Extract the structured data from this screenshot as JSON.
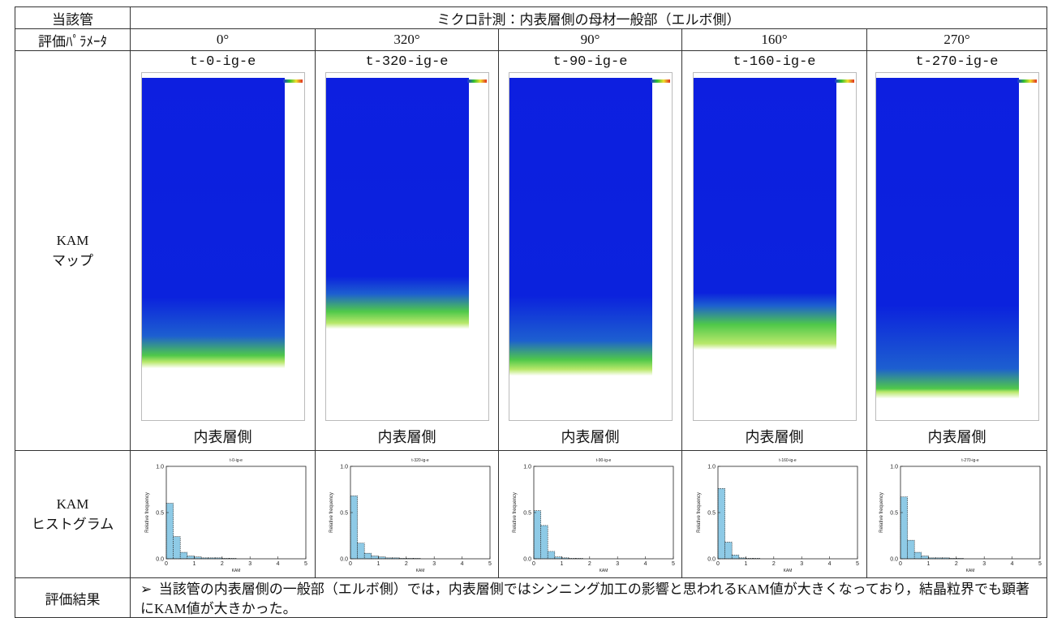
{
  "header": {
    "label": "当該管",
    "title": "ミクロ計測：内表層側の母材一般部（エルボ側）"
  },
  "params": {
    "label": "評価ﾊﾟﾗﾒｰﾀ",
    "angles": [
      "0°",
      "320°",
      "90°",
      "160°",
      "270°"
    ]
  },
  "kam_map": {
    "label": [
      "KAM",
      "マップ"
    ],
    "titles": [
      "t-0-ig-e",
      "t-320-ig-e",
      "t-90-ig-e",
      "t-160-ig-e",
      "t-270-ig-e"
    ],
    "captions": [
      "内表層側",
      "内表層側",
      "内表層側",
      "内表層側",
      "内表層側"
    ]
  },
  "histogram": {
    "label": [
      "KAM",
      "ヒストグラム"
    ],
    "charts": [
      {
        "type": "bar",
        "title": "t-0-ig-e",
        "xlabel": "KAM",
        "ylabel": "Relative frequency",
        "color": "#8ecae6",
        "bins": [
          0,
          0.25,
          0.5,
          0.75,
          1,
          1.25,
          1.5,
          1.75,
          2,
          2.25,
          2.5
        ],
        "values": [
          0.6,
          0.24,
          0.07,
          0.03,
          0.02,
          0.01,
          0.01,
          0.01,
          0.005,
          0.005
        ],
        "xlim": [
          0,
          5
        ],
        "ylim": [
          0,
          1
        ],
        "xticks": [
          0,
          1,
          2,
          3,
          4,
          5
        ],
        "yticks": [
          {
            "value": 0,
            "label": "0.0"
          },
          {
            "value": 0.5,
            "label": "0.5"
          },
          {
            "value": 1,
            "label": "1.0"
          }
        ]
      },
      {
        "type": "bar",
        "title": "t-320-ig-e",
        "xlabel": "KAM",
        "ylabel": "Relative frequency",
        "color": "#8ecae6",
        "bins": [
          0,
          0.25,
          0.5,
          0.75,
          1,
          1.25,
          1.5,
          1.75,
          2,
          2.25,
          2.5
        ],
        "values": [
          0.68,
          0.17,
          0.06,
          0.03,
          0.02,
          0.01,
          0.01,
          0.005,
          0.005,
          0.005
        ],
        "xlim": [
          0,
          5
        ],
        "ylim": [
          0,
          1
        ],
        "xticks": [
          0,
          1,
          2,
          3,
          4,
          5
        ],
        "yticks": [
          {
            "value": 0,
            "label": "0.0"
          },
          {
            "value": 0.5,
            "label": "0.5"
          },
          {
            "value": 1,
            "label": "1.0"
          }
        ]
      },
      {
        "type": "bar",
        "title": "t-90-ig-e",
        "xlabel": "KAM",
        "ylabel": "Relative frequency",
        "color": "#8ecae6",
        "bins": [
          0,
          0.25,
          0.5,
          0.75,
          1,
          1.25,
          1.5,
          1.75,
          2,
          2.25,
          2.5
        ],
        "values": [
          0.52,
          0.36,
          0.08,
          0.02,
          0.01,
          0.005,
          0.005,
          0,
          0,
          0
        ],
        "xlim": [
          0,
          5
        ],
        "ylim": [
          0,
          1
        ],
        "xticks": [
          0,
          1,
          2,
          3,
          4,
          5
        ],
        "yticks": [
          {
            "value": 0,
            "label": "0.0"
          },
          {
            "value": 0.5,
            "label": "0.5"
          },
          {
            "value": 1,
            "label": "1.0"
          }
        ]
      },
      {
        "type": "bar",
        "title": "t-160-ig-e",
        "xlabel": "KAM",
        "ylabel": "Relative frequency",
        "color": "#8ecae6",
        "bins": [
          0,
          0.25,
          0.5,
          0.75,
          1,
          1.25,
          1.5,
          1.75,
          2,
          2.25,
          2.5
        ],
        "values": [
          0.76,
          0.18,
          0.04,
          0.01,
          0.005,
          0.005,
          0,
          0,
          0,
          0
        ],
        "xlim": [
          0,
          5
        ],
        "ylim": [
          0,
          1
        ],
        "xticks": [
          0,
          1,
          2,
          3,
          4,
          5
        ],
        "yticks": [
          {
            "value": 0,
            "label": "0.0"
          },
          {
            "value": 0.5,
            "label": "0.5"
          },
          {
            "value": 1,
            "label": "1.0"
          }
        ]
      },
      {
        "type": "bar",
        "title": "t-270-ig-e",
        "xlabel": "KAM",
        "ylabel": "Relative frequency",
        "color": "#8ecae6",
        "bins": [
          0,
          0.25,
          0.5,
          0.75,
          1,
          1.25,
          1.5,
          1.75,
          2,
          2.25,
          2.5
        ],
        "values": [
          0.67,
          0.2,
          0.07,
          0.03,
          0.01,
          0.01,
          0.01,
          0.005,
          0.005,
          0
        ],
        "xlim": [
          0,
          5
        ],
        "ylim": [
          0,
          1
        ],
        "xticks": [
          0,
          1,
          2,
          3,
          4,
          5
        ],
        "yticks": [
          {
            "value": 0,
            "label": "0.0"
          },
          {
            "value": 0.5,
            "label": "0.5"
          },
          {
            "value": 1,
            "label": "1.0"
          }
        ]
      }
    ]
  },
  "result": {
    "label": "評価結果",
    "bullet": "➢",
    "text": "当該管の内表層側の一般部（エルボ側）では，内表層側ではシンニング加工の影響と思われるKAM値が大きくなっており，結晶粒界でも顕著にKAM値が大きかった。"
  }
}
